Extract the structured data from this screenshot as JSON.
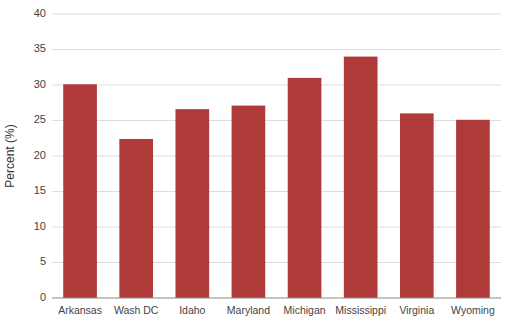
{
  "chart_data": {
    "type": "bar",
    "categories": [
      "Arkansas",
      "Wash DC",
      "Idaho",
      "Maryland",
      "Michigan",
      "Mississippi",
      "Virginia",
      "Wyoming"
    ],
    "values": [
      30.1,
      22.4,
      26.6,
      27.1,
      31.0,
      34.0,
      26.0,
      25.1
    ],
    "color": "#b03a3a",
    "ylabel": "Percent (%)",
    "ylim": [
      0,
      40
    ],
    "yticks": [
      0,
      5,
      10,
      15,
      20,
      25,
      30,
      35,
      40
    ],
    "grid": true
  }
}
